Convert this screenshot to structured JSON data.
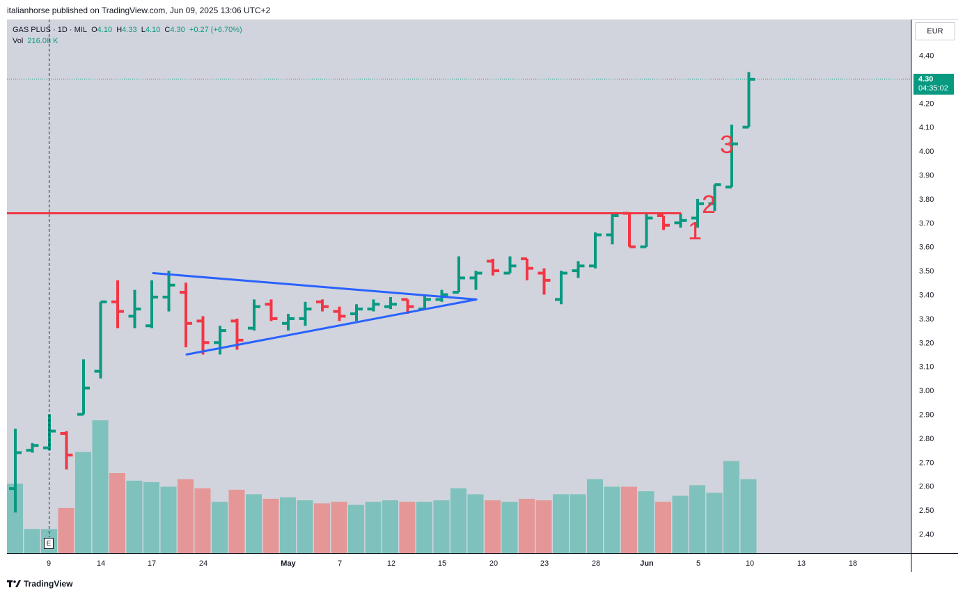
{
  "header": {
    "publish_note": "italianhorse published on TradingView.com, Jun 09, 2025 13:06 UTC+2"
  },
  "legend": {
    "symbol": "GAS PLUS · 1D · MIL",
    "o_label": "O",
    "o": "4.10",
    "h_label": "H",
    "h": "4.33",
    "l_label": "L",
    "l": "4.10",
    "c_label": "C",
    "c": "4.30",
    "change": "+0.27 (+6.70%)",
    "vol_label": "Vol",
    "vol": "216.08 K"
  },
  "currency": "EUR",
  "last_price": {
    "price": "4.30",
    "countdown": "04:35:02"
  },
  "earnings_marker": "E",
  "footer": {
    "brand": "TradingView"
  },
  "colors": {
    "up": "#089981",
    "down": "#f23645",
    "up_vol": "#7fc1bd",
    "down_vol": "#e59797",
    "background": "#d1d4dc",
    "resistance": "#f23645",
    "pattern": "#2962ff",
    "wave_labels": "#f23645"
  },
  "chart_data": {
    "type": "ohlc",
    "yaxis": {
      "ticks": [
        "4.40",
        "4.30",
        "4.20",
        "4.10",
        "4.00",
        "3.90",
        "3.80",
        "3.70",
        "3.60",
        "3.50",
        "3.40",
        "3.30",
        "3.20",
        "3.10",
        "3.00",
        "2.90",
        "2.80",
        "2.70",
        "2.60",
        "2.50",
        "2.40"
      ],
      "ylim": [
        2.36,
        4.49
      ]
    },
    "xaxis": {
      "ticks": [
        "9",
        "14",
        "17",
        "24",
        "May",
        "7",
        "12",
        "15",
        "20",
        "23",
        "28",
        "Jun",
        "5",
        "10",
        "13",
        "18"
      ]
    },
    "bars": [
      {
        "o": 2.59,
        "h": 2.84,
        "l": 2.49,
        "c": 2.74,
        "vol": 0.46
      },
      {
        "o": 2.75,
        "h": 2.78,
        "l": 2.74,
        "c": 2.77,
        "vol": 0.16
      },
      {
        "o": 2.76,
        "h": 2.9,
        "l": 2.75,
        "c": 2.83,
        "vol": 0.16
      },
      {
        "o": 2.82,
        "h": 2.83,
        "l": 2.67,
        "c": 2.73,
        "vol": 0.3
      },
      {
        "o": 2.9,
        "h": 3.13,
        "l": 2.9,
        "c": 3.01,
        "vol": 0.67
      },
      {
        "o": 3.08,
        "h": 3.37,
        "l": 3.05,
        "c": 3.37,
        "vol": 0.88
      },
      {
        "o": 3.37,
        "h": 3.46,
        "l": 3.26,
        "c": 3.33,
        "vol": 0.53
      },
      {
        "o": 3.31,
        "h": 3.42,
        "l": 3.26,
        "c": 3.34,
        "vol": 0.48
      },
      {
        "o": 3.27,
        "h": 3.46,
        "l": 3.26,
        "c": 3.39,
        "vol": 0.47
      },
      {
        "o": 3.39,
        "h": 3.5,
        "l": 3.33,
        "c": 3.44,
        "vol": 0.44
      },
      {
        "o": 3.41,
        "h": 3.45,
        "l": 3.18,
        "c": 3.28,
        "vol": 0.49
      },
      {
        "o": 3.29,
        "h": 3.31,
        "l": 3.15,
        "c": 3.2,
        "vol": 0.43
      },
      {
        "o": 3.2,
        "h": 3.27,
        "l": 3.15,
        "c": 3.25,
        "vol": 0.34
      },
      {
        "o": 3.29,
        "h": 3.3,
        "l": 3.17,
        "c": 3.21,
        "vol": 0.42
      },
      {
        "o": 3.26,
        "h": 3.38,
        "l": 3.25,
        "c": 3.35,
        "vol": 0.39
      },
      {
        "o": 3.36,
        "h": 3.38,
        "l": 3.29,
        "c": 3.3,
        "vol": 0.36
      },
      {
        "o": 3.28,
        "h": 3.32,
        "l": 3.25,
        "c": 3.3,
        "vol": 0.37
      },
      {
        "o": 3.3,
        "h": 3.37,
        "l": 3.27,
        "c": 3.34,
        "vol": 0.35
      },
      {
        "o": 3.37,
        "h": 3.38,
        "l": 3.33,
        "c": 3.35,
        "vol": 0.33
      },
      {
        "o": 3.33,
        "h": 3.35,
        "l": 3.29,
        "c": 3.31,
        "vol": 0.34
      },
      {
        "o": 3.32,
        "h": 3.36,
        "l": 3.29,
        "c": 3.34,
        "vol": 0.32
      },
      {
        "o": 3.34,
        "h": 3.38,
        "l": 3.33,
        "c": 3.36,
        "vol": 0.34
      },
      {
        "o": 3.35,
        "h": 3.39,
        "l": 3.34,
        "c": 3.36,
        "vol": 0.35
      },
      {
        "o": 3.38,
        "h": 3.38,
        "l": 3.32,
        "c": 3.35,
        "vol": 0.34
      },
      {
        "o": 3.34,
        "h": 3.4,
        "l": 3.34,
        "c": 3.38,
        "vol": 0.34
      },
      {
        "o": 3.38,
        "h": 3.42,
        "l": 3.37,
        "c": 3.4,
        "vol": 0.35
      },
      {
        "o": 3.41,
        "h": 3.56,
        "l": 3.41,
        "c": 3.47,
        "vol": 0.43
      },
      {
        "o": 3.47,
        "h": 3.5,
        "l": 3.42,
        "c": 3.49,
        "vol": 0.39
      },
      {
        "o": 3.54,
        "h": 3.55,
        "l": 3.48,
        "c": 3.5,
        "vol": 0.35
      },
      {
        "o": 3.49,
        "h": 3.56,
        "l": 3.49,
        "c": 3.52,
        "vol": 0.34
      },
      {
        "o": 3.55,
        "h": 3.55,
        "l": 3.46,
        "c": 3.51,
        "vol": 0.36
      },
      {
        "o": 3.49,
        "h": 3.51,
        "l": 3.4,
        "c": 3.46,
        "vol": 0.35
      },
      {
        "o": 3.38,
        "h": 3.5,
        "l": 3.36,
        "c": 3.49,
        "vol": 0.39
      },
      {
        "o": 3.5,
        "h": 3.54,
        "l": 3.47,
        "c": 3.52,
        "vol": 0.39
      },
      {
        "o": 3.52,
        "h": 3.66,
        "l": 3.51,
        "c": 3.65,
        "vol": 0.49
      },
      {
        "o": 3.65,
        "h": 3.74,
        "l": 3.61,
        "c": 3.73,
        "vol": 0.44
      },
      {
        "o": 3.74,
        "h": 3.74,
        "l": 3.6,
        "c": 3.6,
        "vol": 0.44
      },
      {
        "o": 3.6,
        "h": 3.74,
        "l": 3.6,
        "c": 3.72,
        "vol": 0.41
      },
      {
        "o": 3.73,
        "h": 3.73,
        "l": 3.67,
        "c": 3.69,
        "vol": 0.34
      },
      {
        "o": 3.7,
        "h": 3.74,
        "l": 3.68,
        "c": 3.71,
        "vol": 0.38
      },
      {
        "o": 3.72,
        "h": 3.8,
        "l": 3.68,
        "c": 3.78,
        "vol": 0.45
      },
      {
        "o": 3.78,
        "h": 3.86,
        "l": 3.75,
        "c": 3.86,
        "vol": 0.4
      },
      {
        "o": 3.85,
        "h": 4.11,
        "l": 3.85,
        "c": 4.03,
        "vol": 0.61
      },
      {
        "o": 4.1,
        "h": 4.33,
        "l": 4.1,
        "c": 4.3,
        "vol": 0.49
      }
    ],
    "annotations": [
      {
        "text": "1",
        "type": "wave-label"
      },
      {
        "text": "2",
        "type": "wave-label"
      },
      {
        "text": "3",
        "type": "wave-label"
      }
    ],
    "resistance": 3.74,
    "triangle": {
      "upper_start": 3.49,
      "lower_start": 3.15,
      "apex": 3.38
    },
    "grid": false
  }
}
